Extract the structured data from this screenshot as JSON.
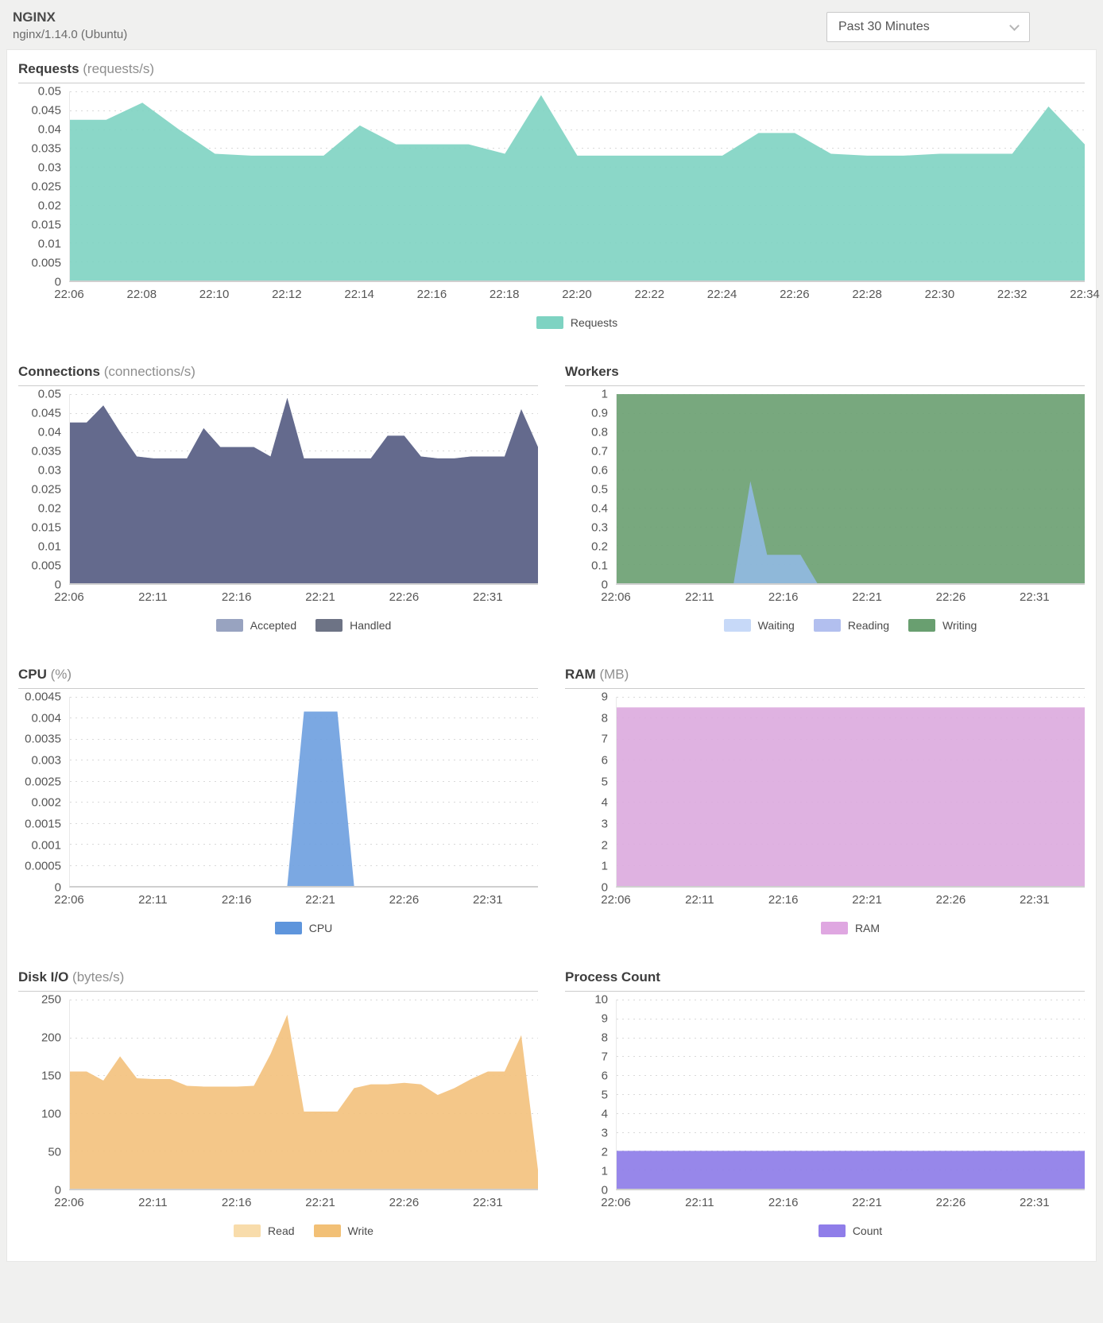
{
  "header": {
    "title": "NGINX",
    "subtitle": "nginx/1.14.0 (Ubuntu)"
  },
  "time_range_dropdown": {
    "value": "Past 30 Minutes"
  },
  "chart_data": [
    {
      "id": "requests",
      "type": "area",
      "layout": "full",
      "title": "Requests",
      "unit": "(requests/s)",
      "x": [
        "22:06",
        "22:07",
        "22:08",
        "22:09",
        "22:10",
        "22:11",
        "22:12",
        "22:13",
        "22:14",
        "22:15",
        "22:16",
        "22:17",
        "22:18",
        "22:19",
        "22:20",
        "22:21",
        "22:22",
        "22:23",
        "22:24",
        "22:25",
        "22:26",
        "22:27",
        "22:28",
        "22:29",
        "22:30",
        "22:31",
        "22:32",
        "22:33",
        "22:34"
      ],
      "xticks": [
        "22:06",
        "22:08",
        "22:10",
        "22:12",
        "22:14",
        "22:16",
        "22:18",
        "22:20",
        "22:22",
        "22:24",
        "22:26",
        "22:28",
        "22:30",
        "22:32",
        "22:34"
      ],
      "xtick_indices": [
        0,
        2,
        4,
        6,
        8,
        10,
        12,
        14,
        16,
        18,
        20,
        22,
        24,
        26,
        28
      ],
      "yticks": [
        "0",
        "0.005",
        "0.01",
        "0.015",
        "0.02",
        "0.025",
        "0.03",
        "0.035",
        "0.04",
        "0.045",
        "0.05"
      ],
      "ylim": [
        0,
        0.05
      ],
      "series": [
        {
          "name": "Requests",
          "color": "#7ed3c2",
          "values": [
            0.0425,
            0.0425,
            0.047,
            0.04,
            0.0335,
            0.033,
            0.033,
            0.033,
            0.041,
            0.036,
            0.036,
            0.036,
            0.0335,
            0.049,
            0.033,
            0.033,
            0.033,
            0.033,
            0.033,
            0.039,
            0.039,
            0.0335,
            0.033,
            0.033,
            0.0335,
            0.0335,
            0.0335,
            0.046,
            0.036
          ]
        }
      ],
      "legend": [
        {
          "label": "Requests",
          "color": "#7ed3c2"
        }
      ]
    },
    {
      "id": "connections",
      "type": "area",
      "layout": "half-left",
      "title": "Connections",
      "unit": "(connections/s)",
      "x": [
        "22:06",
        "22:07",
        "22:08",
        "22:09",
        "22:10",
        "22:11",
        "22:12",
        "22:13",
        "22:14",
        "22:15",
        "22:16",
        "22:17",
        "22:18",
        "22:19",
        "22:20",
        "22:21",
        "22:22",
        "22:23",
        "22:24",
        "22:25",
        "22:26",
        "22:27",
        "22:28",
        "22:29",
        "22:30",
        "22:31",
        "22:32",
        "22:33",
        "22:34"
      ],
      "xticks": [
        "22:06",
        "22:11",
        "22:16",
        "22:21",
        "22:26",
        "22:31"
      ],
      "xtick_indices": [
        0,
        5,
        10,
        15,
        20,
        25
      ],
      "yticks": [
        "0",
        "0.005",
        "0.01",
        "0.015",
        "0.02",
        "0.025",
        "0.03",
        "0.035",
        "0.04",
        "0.045",
        "0.05"
      ],
      "ylim": [
        0,
        0.05
      ],
      "series": [
        {
          "name": "Accepted",
          "color": "#98a3c0",
          "values": [
            0.0425,
            0.0425,
            0.047,
            0.04,
            0.0335,
            0.033,
            0.033,
            0.033,
            0.041,
            0.036,
            0.036,
            0.036,
            0.0335,
            0.049,
            0.033,
            0.033,
            0.033,
            0.033,
            0.033,
            0.039,
            0.039,
            0.0335,
            0.033,
            0.033,
            0.0335,
            0.0335,
            0.0335,
            0.046,
            0.036
          ]
        },
        {
          "name": "Handled",
          "color": "#5d6386",
          "values": [
            0.0425,
            0.0425,
            0.047,
            0.04,
            0.0335,
            0.033,
            0.033,
            0.033,
            0.041,
            0.036,
            0.036,
            0.036,
            0.0335,
            0.049,
            0.033,
            0.033,
            0.033,
            0.033,
            0.033,
            0.039,
            0.039,
            0.0335,
            0.033,
            0.033,
            0.0335,
            0.0335,
            0.0335,
            0.046,
            0.036
          ]
        }
      ],
      "legend": [
        {
          "label": "Accepted",
          "color": "#98a3c0"
        },
        {
          "label": "Handled",
          "color": "#6d7385"
        }
      ]
    },
    {
      "id": "workers",
      "type": "area",
      "layout": "half-right",
      "title": "Workers",
      "unit": "",
      "x": [
        "22:06",
        "22:07",
        "22:08",
        "22:09",
        "22:10",
        "22:11",
        "22:12",
        "22:13",
        "22:14",
        "22:15",
        "22:16",
        "22:17",
        "22:18",
        "22:19",
        "22:20",
        "22:21",
        "22:22",
        "22:23",
        "22:24",
        "22:25",
        "22:26",
        "22:27",
        "22:28",
        "22:29",
        "22:30",
        "22:31",
        "22:32",
        "22:33",
        "22:34"
      ],
      "xticks": [
        "22:06",
        "22:11",
        "22:16",
        "22:21",
        "22:26",
        "22:31"
      ],
      "xtick_indices": [
        0,
        5,
        10,
        15,
        20,
        25
      ],
      "yticks": [
        "0",
        "0.1",
        "0.2",
        "0.3",
        "0.4",
        "0.5",
        "0.6",
        "0.7",
        "0.8",
        "0.9",
        "1"
      ],
      "ylim": [
        0,
        1
      ],
      "series": [
        {
          "name": "Writing",
          "color": "#699f70",
          "values": [
            1,
            1,
            1,
            1,
            1,
            1,
            1,
            1,
            1,
            1,
            1,
            1,
            1,
            1,
            1,
            1,
            1,
            1,
            1,
            1,
            1,
            1,
            1,
            1,
            1,
            1,
            1,
            1,
            1
          ]
        },
        {
          "name": "Waiting",
          "color": "#91b9e3",
          "values": [
            0,
            0,
            0,
            0,
            0,
            0,
            0,
            0,
            0.54,
            0.15,
            0.15,
            0.15,
            0,
            0,
            0,
            0,
            0,
            0,
            0,
            0,
            0,
            0,
            0,
            0,
            0,
            0,
            0,
            0,
            0
          ]
        },
        {
          "name": "Reading",
          "color": "#b2bfef",
          "values": [
            0,
            0,
            0,
            0,
            0,
            0,
            0,
            0,
            0,
            0,
            0,
            0,
            0,
            0,
            0,
            0,
            0,
            0,
            0,
            0,
            0,
            0,
            0,
            0,
            0,
            0,
            0,
            0,
            0
          ]
        }
      ],
      "legend": [
        {
          "label": "Waiting",
          "color": "#c7d9f8"
        },
        {
          "label": "Reading",
          "color": "#b2bfef"
        },
        {
          "label": "Writing",
          "color": "#699f70"
        }
      ]
    },
    {
      "id": "cpu",
      "type": "area",
      "layout": "half-left",
      "title": "CPU",
      "unit": "(%)",
      "x": [
        "22:06",
        "22:07",
        "22:08",
        "22:09",
        "22:10",
        "22:11",
        "22:12",
        "22:13",
        "22:14",
        "22:15",
        "22:16",
        "22:17",
        "22:18",
        "22:19",
        "22:20",
        "22:21",
        "22:22",
        "22:23",
        "22:24",
        "22:25",
        "22:26",
        "22:27",
        "22:28",
        "22:29",
        "22:30",
        "22:31",
        "22:32",
        "22:33",
        "22:34"
      ],
      "xticks": [
        "22:06",
        "22:11",
        "22:16",
        "22:21",
        "22:26",
        "22:31"
      ],
      "xtick_indices": [
        0,
        5,
        10,
        15,
        20,
        25
      ],
      "yticks": [
        "0",
        "0.0005",
        "0.001",
        "0.0015",
        "0.002",
        "0.0025",
        "0.003",
        "0.0035",
        "0.004",
        "0.0045"
      ],
      "ylim": [
        0,
        0.0045
      ],
      "series": [
        {
          "name": "CPU",
          "color": "#6d9edf",
          "values": [
            0,
            0,
            0,
            0,
            0,
            0,
            0,
            0,
            0,
            0,
            0,
            0,
            0,
            0,
            0.00415,
            0.00415,
            0.00415,
            0,
            0,
            0,
            0,
            0,
            0,
            0,
            0,
            0,
            0,
            0,
            0
          ]
        }
      ],
      "legend": [
        {
          "label": "CPU",
          "color": "#5e95dc"
        }
      ]
    },
    {
      "id": "ram",
      "type": "area",
      "layout": "half-right",
      "title": "RAM",
      "unit": "(MB)",
      "x": [
        "22:06",
        "22:07",
        "22:08",
        "22:09",
        "22:10",
        "22:11",
        "22:12",
        "22:13",
        "22:14",
        "22:15",
        "22:16",
        "22:17",
        "22:18",
        "22:19",
        "22:20",
        "22:21",
        "22:22",
        "22:23",
        "22:24",
        "22:25",
        "22:26",
        "22:27",
        "22:28",
        "22:29",
        "22:30",
        "22:31",
        "22:32",
        "22:33",
        "22:34"
      ],
      "xticks": [
        "22:06",
        "22:11",
        "22:16",
        "22:21",
        "22:26",
        "22:31"
      ],
      "xtick_indices": [
        0,
        5,
        10,
        15,
        20,
        25
      ],
      "yticks": [
        "0",
        "1",
        "2",
        "3",
        "4",
        "5",
        "6",
        "7",
        "8",
        "9"
      ],
      "ylim": [
        0,
        9
      ],
      "series": [
        {
          "name": "RAM",
          "color": "#dcaade",
          "values": [
            8.5,
            8.5,
            8.5,
            8.5,
            8.5,
            8.5,
            8.5,
            8.5,
            8.5,
            8.5,
            8.5,
            8.5,
            8.5,
            8.5,
            8.5,
            8.5,
            8.5,
            8.5,
            8.5,
            8.5,
            8.5,
            8.5,
            8.5,
            8.5,
            8.5,
            8.5,
            8.5,
            8.5,
            8.5
          ]
        }
      ],
      "legend": [
        {
          "label": "RAM",
          "color": "#dfa7e1"
        }
      ]
    },
    {
      "id": "disk-io",
      "type": "area",
      "layout": "half-left",
      "title": "Disk I/O",
      "unit": "(bytes/s)",
      "x": [
        "22:06",
        "22:07",
        "22:08",
        "22:09",
        "22:10",
        "22:11",
        "22:12",
        "22:13",
        "22:14",
        "22:15",
        "22:16",
        "22:17",
        "22:18",
        "22:19",
        "22:20",
        "22:21",
        "22:22",
        "22:23",
        "22:24",
        "22:25",
        "22:26",
        "22:27",
        "22:28",
        "22:29",
        "22:30",
        "22:31",
        "22:32",
        "22:33",
        "22:34"
      ],
      "xticks": [
        "22:06",
        "22:11",
        "22:16",
        "22:21",
        "22:26",
        "22:31"
      ],
      "xtick_indices": [
        0,
        5,
        10,
        15,
        20,
        25
      ],
      "yticks": [
        "0",
        "50",
        "100",
        "150",
        "200",
        "250"
      ],
      "ylim": [
        0,
        250
      ],
      "series": [
        {
          "name": "Read",
          "color": "#f8dcab",
          "values": [
            0,
            0,
            0,
            0,
            0,
            0,
            0,
            0,
            0,
            0,
            0,
            0,
            0,
            0,
            0,
            0,
            0,
            0,
            0,
            0,
            0,
            0,
            0,
            0,
            0,
            0,
            0,
            0,
            0
          ]
        },
        {
          "name": "Write",
          "color": "#f3c17c",
          "values": [
            155,
            155,
            143,
            175,
            146,
            145,
            145,
            136,
            135,
            135,
            135,
            136,
            178,
            230,
            102,
            102,
            102,
            133,
            138,
            138,
            140,
            138,
            124,
            133,
            145,
            155,
            155,
            203,
            25
          ]
        }
      ],
      "legend": [
        {
          "label": "Read",
          "color": "#f8dcab"
        },
        {
          "label": "Write",
          "color": "#f2c076"
        }
      ]
    },
    {
      "id": "process-count",
      "type": "area",
      "layout": "half-right",
      "title": "Process Count",
      "unit": "",
      "x": [
        "22:06",
        "22:07",
        "22:08",
        "22:09",
        "22:10",
        "22:11",
        "22:12",
        "22:13",
        "22:14",
        "22:15",
        "22:16",
        "22:17",
        "22:18",
        "22:19",
        "22:20",
        "22:21",
        "22:22",
        "22:23",
        "22:24",
        "22:25",
        "22:26",
        "22:27",
        "22:28",
        "22:29",
        "22:30",
        "22:31",
        "22:32",
        "22:33",
        "22:34"
      ],
      "xticks": [
        "22:06",
        "22:11",
        "22:16",
        "22:21",
        "22:26",
        "22:31"
      ],
      "xtick_indices": [
        0,
        5,
        10,
        15,
        20,
        25
      ],
      "yticks": [
        "0",
        "1",
        "2",
        "3",
        "4",
        "5",
        "6",
        "7",
        "8",
        "9",
        "10"
      ],
      "ylim": [
        0,
        10
      ],
      "series": [
        {
          "name": "Count",
          "color": "#8c7ae8",
          "values": [
            2,
            2,
            2,
            2,
            2,
            2,
            2,
            2,
            2,
            2,
            2,
            2,
            2,
            2,
            2,
            2,
            2,
            2,
            2,
            2,
            2,
            2,
            2,
            2,
            2,
            2,
            2,
            2,
            2
          ]
        }
      ],
      "legend": [
        {
          "label": "Count",
          "color": "#8f7de9"
        }
      ]
    }
  ]
}
